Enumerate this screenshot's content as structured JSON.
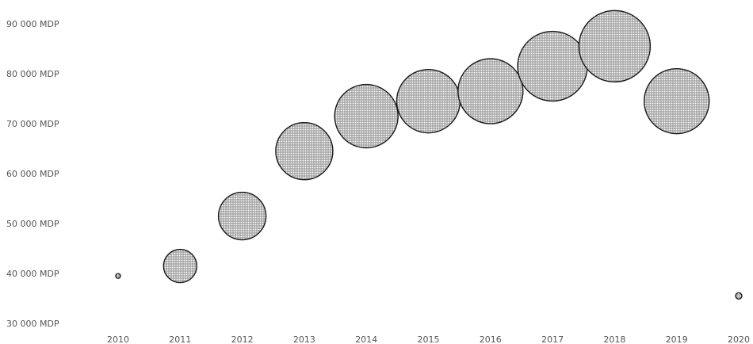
{
  "chart_data": {
    "type": "scatter",
    "x": [
      "2010",
      "2011",
      "2012",
      "2013",
      "2014",
      "2015",
      "2016",
      "2017",
      "2018",
      "2019",
      "2020"
    ],
    "y": [
      39500,
      41500,
      51500,
      64500,
      71500,
      74500,
      76500,
      81500,
      85500,
      74500,
      35500
    ],
    "size": [
      3,
      21,
      30,
      36,
      40,
      40,
      41,
      44,
      45,
      41,
      4
    ],
    "ylim": [
      30000,
      90000
    ],
    "yticks": [
      30000,
      40000,
      50000,
      60000,
      70000,
      80000,
      90000
    ],
    "ytick_labels": [
      "30 000 MDP",
      "40 000 MDP",
      "50 000 MDP",
      "60 000 MDP",
      "70 000 MDP",
      "80 000 MDP",
      "90 000 MDP"
    ],
    "xtick_labels": [
      "2010",
      "2011",
      "2012",
      "2013",
      "2014",
      "2015",
      "2016",
      "2017",
      "2018",
      "2019",
      "2020"
    ],
    "marker_fill": "dotted gray",
    "marker_edge_color": "#1a1a1a",
    "grid": false,
    "legend": "none"
  }
}
